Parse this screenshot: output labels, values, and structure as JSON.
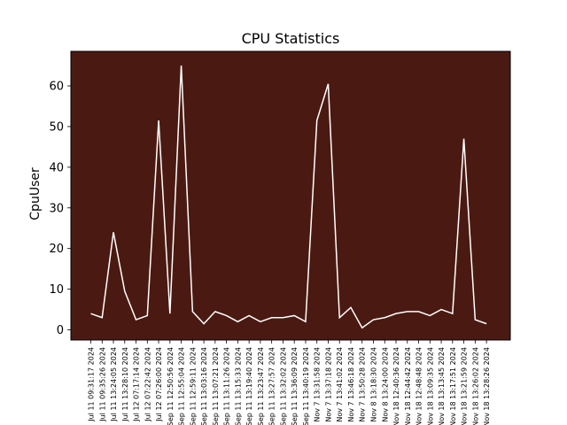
{
  "chart_data": {
    "type": "line",
    "title": "CPU Statistics",
    "xlabel": "",
    "ylabel": "CpuUser",
    "ylim": [
      -2.5,
      68.5
    ],
    "yticks": [
      0,
      10,
      20,
      30,
      40,
      50,
      60
    ],
    "grid": false,
    "legend": "none",
    "background_color": "#4a1a12",
    "line_color": "#ffffff",
    "categories": [
      "Jul 11 09:31:17 2024",
      "Jul 11 09:35:26 2024",
      "Jul 11 13:24:05 2024",
      "Jul 11 13:28:10 2024",
      "Jul 12 07:17:14 2024",
      "Jul 12 07:22:42 2024",
      "Jul 12 07:26:00 2024",
      "Sep 11 12:50:56 2024",
      "Sep 11 12:55:04 2024",
      "Sep 11 12:59:11 2024",
      "Sep 11 13:03:16 2024",
      "Sep 11 13:07:21 2024",
      "Sep 11 13:11:26 2024",
      "Sep 11 13:15:33 2024",
      "Sep 11 13:19:40 2024",
      "Sep 11 13:23:47 2024",
      "Sep 11 13:27:57 2024",
      "Sep 11 13:32:02 2024",
      "Sep 11 13:36:09 2024",
      "Sep 11 13:40:19 2024",
      "Nov 7 13:31:58 2024",
      "Nov 7 13:37:18 2024",
      "Nov 7 13:41:02 2024",
      "Nov 7 13:46:18 2024",
      "Nov 7 13:50:28 2024",
      "Nov 8 13:18:30 2024",
      "Nov 8 13:24:00 2024",
      "Nov 18 12:40:36 2024",
      "Nov 18 12:44:42 2024",
      "Nov 18 12:48:48 2024",
      "Nov 18 13:09:35 2024",
      "Nov 18 13:13:45 2024",
      "Nov 18 13:17:51 2024",
      "Nov 18 13:21:59 2024",
      "Nov 18 13:26:02 2024",
      "Nov 18 13:28:26 2024"
    ],
    "series": [
      {
        "values": [
          4.0,
          3.0,
          24.0,
          9.5,
          2.5,
          3.5,
          51.5,
          4.0,
          65.0,
          4.5,
          1.5,
          4.5,
          3.5,
          2.0,
          3.5,
          2.0,
          3.0,
          3.0,
          3.5,
          2.0,
          51.5,
          60.5,
          3.0,
          5.5,
          0.5,
          2.5,
          3.0,
          4.0,
          4.5,
          4.5,
          3.5,
          5.0,
          4.0,
          47.0,
          2.5,
          1.5
        ]
      }
    ]
  }
}
